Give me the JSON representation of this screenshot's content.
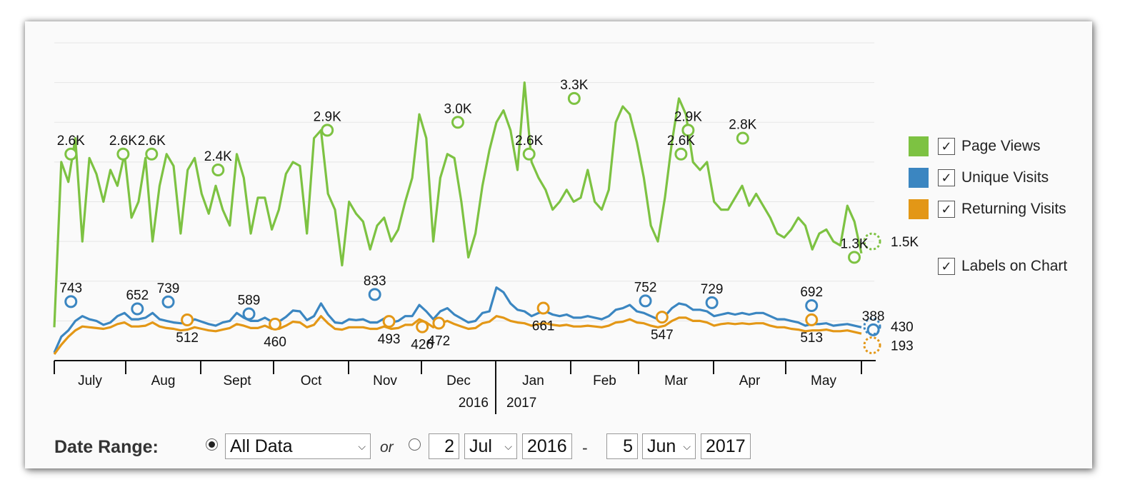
{
  "colors": {
    "page_views": "#7dc242",
    "unique_visits": "#3b86c1",
    "returning_visits": "#e39716"
  },
  "legend": {
    "page_views": "Page Views",
    "unique_visits": "Unique Visits",
    "returning_visits": "Returning Visits",
    "labels_on_chart": "Labels on Chart",
    "check_mark": "✓"
  },
  "date_range": {
    "label": "Date Range:",
    "preset": "All Data",
    "or": "or",
    "from_day": "2",
    "from_month": "Jul",
    "from_year": "2016",
    "separator": "-",
    "to_day": "5",
    "to_month": "Jun",
    "to_year": "2017",
    "chevron": "⌵"
  },
  "chart_data": {
    "type": "line",
    "x_range": [
      "2016-07-01",
      "2017-06-05"
    ],
    "months": [
      "July",
      "Aug",
      "Sept",
      "Oct",
      "Nov",
      "Dec",
      "Jan",
      "Feb",
      "Mar",
      "Apr",
      "May"
    ],
    "years": [
      "2016",
      "2017"
    ],
    "ylim": [
      0,
      4000
    ],
    "grid": true,
    "legend": "right",
    "series": [
      {
        "name": "Page Views",
        "key": "page_views",
        "values": [
          420,
          2500,
          2250,
          2800,
          1500,
          2550,
          2350,
          2000,
          2400,
          2200,
          2600,
          1800,
          2000,
          2550,
          1500,
          2200,
          2600,
          2450,
          1600,
          2400,
          2550,
          2100,
          1850,
          2200,
          1900,
          1700,
          2600,
          2300,
          1600,
          2050,
          2050,
          1650,
          1900,
          2350,
          2500,
          2450,
          1600,
          2800,
          2900,
          2100,
          1900,
          1200,
          2000,
          1850,
          1750,
          1400,
          1700,
          1800,
          1500,
          1650,
          2000,
          2300,
          3100,
          2800,
          1500,
          2300,
          2600,
          2550,
          2000,
          1300,
          1600,
          2200,
          2650,
          3000,
          3150,
          2900,
          2400,
          3500,
          2500,
          2300,
          2150,
          1900,
          2000,
          2150,
          2000,
          2050,
          2400,
          2000,
          1900,
          2150,
          3000,
          3200,
          3100,
          2750,
          2300,
          1700,
          1500,
          2050,
          2750,
          3300,
          3100,
          2500,
          2400,
          2500,
          2000,
          1900,
          1900,
          2050,
          2200,
          1950,
          2100,
          1950,
          1800,
          1600,
          1550,
          1650,
          1800,
          1700,
          1400,
          1600,
          1650,
          1500,
          1450,
          1950,
          1750,
          1350
        ],
        "labels": [
          {
            "i": 7,
            "value": 2600,
            "text": "2.6K"
          },
          {
            "i": 29,
            "value": 2600,
            "text": "2.6K"
          },
          {
            "i": 41,
            "value": 2600,
            "text": "2.6K"
          },
          {
            "i": 69,
            "value": 2400,
            "text": "2.4K"
          },
          {
            "i": 115,
            "value": 2900,
            "text": "2.9K"
          },
          {
            "i": 170,
            "value": 3000,
            "text": "3.0K"
          },
          {
            "i": 200,
            "value": 2600,
            "text": "2.6K"
          },
          {
            "i": 219,
            "value": 3300,
            "text": "3.3K"
          },
          {
            "i": 264,
            "value": 2600,
            "text": "2.6K"
          },
          {
            "i": 267,
            "value": 2900,
            "text": "2.9K"
          },
          {
            "i": 290,
            "value": 2800,
            "text": "2.8K"
          },
          {
            "i": 337,
            "value": 1300,
            "text": "1.3K"
          }
        ],
        "last_label": "1.5K",
        "last_value": 1500
      },
      {
        "name": "Unique Visits",
        "key": "unique_visits",
        "values": [
          100,
          300,
          380,
          500,
          560,
          520,
          500,
          450,
          480,
          560,
          600,
          520,
          520,
          540,
          600,
          520,
          500,
          480,
          470,
          470,
          520,
          490,
          460,
          440,
          480,
          500,
          600,
          540,
          500,
          500,
          540,
          490,
          490,
          550,
          630,
          620,
          510,
          560,
          720,
          580,
          480,
          470,
          520,
          510,
          520,
          480,
          480,
          530,
          480,
          500,
          560,
          560,
          700,
          620,
          520,
          620,
          660,
          580,
          530,
          480,
          500,
          600,
          620,
          920,
          860,
          720,
          640,
          620,
          560,
          600,
          620,
          580,
          560,
          580,
          540,
          540,
          560,
          540,
          520,
          560,
          640,
          660,
          700,
          620,
          600,
          560,
          520,
          560,
          660,
          720,
          700,
          640,
          640,
          620,
          560,
          580,
          600,
          580,
          600,
          580,
          600,
          600,
          560,
          520,
          520,
          500,
          480,
          440,
          460,
          460,
          470,
          440,
          450,
          460,
          440,
          420
        ],
        "labels": [
          {
            "i": 7,
            "value": 743,
            "text": "743"
          },
          {
            "i": 35,
            "value": 652,
            "text": "652"
          },
          {
            "i": 48,
            "value": 739,
            "text": "739"
          },
          {
            "i": 82,
            "value": 589,
            "text": "589"
          },
          {
            "i": 135,
            "value": 833,
            "text": "833"
          },
          {
            "i": 249,
            "value": 752,
            "text": "752"
          },
          {
            "i": 277,
            "value": 729,
            "text": "729"
          },
          {
            "i": 319,
            "value": 692,
            "text": "692"
          },
          {
            "i": 345,
            "value": 388,
            "text": "388"
          }
        ],
        "last_label": "430",
        "last_value": 430
      },
      {
        "name": "Returning Visits",
        "key": "returning_visits",
        "values": [
          80,
          200,
          300,
          380,
          430,
          420,
          410,
          400,
          420,
          460,
          480,
          430,
          430,
          440,
          480,
          430,
          410,
          400,
          380,
          390,
          420,
          400,
          380,
          370,
          390,
          410,
          460,
          440,
          410,
          410,
          440,
          400,
          400,
          440,
          490,
          480,
          420,
          450,
          560,
          470,
          400,
          390,
          420,
          420,
          420,
          400,
          400,
          430,
          400,
          410,
          450,
          450,
          520,
          480,
          420,
          470,
          500,
          460,
          430,
          400,
          410,
          470,
          490,
          560,
          540,
          500,
          480,
          470,
          440,
          460,
          470,
          450,
          440,
          450,
          430,
          430,
          440,
          430,
          420,
          440,
          480,
          490,
          520,
          480,
          470,
          440,
          420,
          440,
          500,
          540,
          540,
          500,
          500,
          480,
          440,
          460,
          470,
          460,
          470,
          460,
          470,
          470,
          440,
          420,
          420,
          400,
          390,
          370,
          380,
          380,
          390,
          370,
          370,
          380,
          360,
          340
        ],
        "labels": [
          {
            "i": 56,
            "value": 512,
            "text": "512"
          },
          {
            "i": 93,
            "value": 460,
            "text": "460"
          },
          {
            "i": 141,
            "value": 493,
            "text": "493"
          },
          {
            "i": 155,
            "value": 426,
            "text": "426"
          },
          {
            "i": 162,
            "value": 472,
            "text": "472"
          },
          {
            "i": 206,
            "value": 661,
            "text": "661"
          },
          {
            "i": 256,
            "value": 547,
            "text": "547"
          },
          {
            "i": 319,
            "value": 513,
            "text": "513"
          }
        ],
        "last_label": "193",
        "last_value": 193
      }
    ]
  }
}
